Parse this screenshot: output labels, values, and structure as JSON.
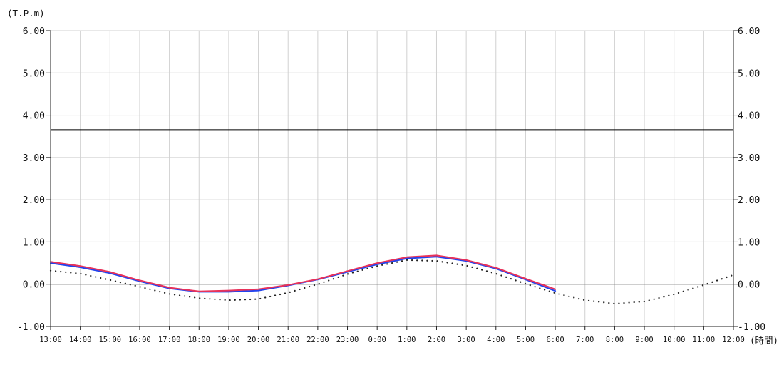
{
  "chart_data": {
    "type": "line",
    "y_unit_label": "(T.P.m)",
    "x_unit_label": "(時間)",
    "ylim": [
      -1.0,
      6.0
    ],
    "y_ticks": [
      "6.00",
      "5.00",
      "4.00",
      "3.00",
      "2.00",
      "1.00",
      "0.00",
      "-1.00"
    ],
    "categories": [
      "13:00",
      "14:00",
      "15:00",
      "16:00",
      "17:00",
      "18:00",
      "19:00",
      "20:00",
      "21:00",
      "22:00",
      "23:00",
      "0:00",
      "1:00",
      "2:00",
      "3:00",
      "4:00",
      "5:00",
      "6:00",
      "7:00",
      "8:00",
      "9:00",
      "10:00",
      "11:00",
      "12:00"
    ],
    "grid": true,
    "reference_line": {
      "value": 3.65,
      "color": "#000000"
    },
    "zero_line": {
      "value": 0.0,
      "color": "#555555"
    },
    "series": [
      {
        "style": "solid",
        "color": "#e8325a",
        "values": [
          0.53,
          0.43,
          0.29,
          0.09,
          -0.08,
          -0.17,
          -0.15,
          -0.12,
          -0.02,
          0.12,
          0.31,
          0.5,
          0.64,
          0.68,
          0.57,
          0.39,
          0.13,
          -0.12,
          null,
          null,
          null,
          null,
          null,
          null
        ]
      },
      {
        "style": "solid",
        "color": "#2244ee",
        "values": [
          0.5,
          0.4,
          0.26,
          0.07,
          -0.1,
          -0.18,
          -0.18,
          -0.15,
          -0.03,
          0.11,
          0.29,
          0.47,
          0.61,
          0.65,
          0.55,
          0.37,
          0.11,
          -0.16,
          null,
          null,
          null,
          null,
          null,
          null
        ]
      },
      {
        "style": "dotted",
        "color": "#222222",
        "values": [
          0.32,
          0.25,
          0.1,
          -0.06,
          -0.23,
          -0.33,
          -0.38,
          -0.35,
          -0.2,
          0.0,
          0.24,
          0.43,
          0.57,
          0.55,
          0.44,
          0.25,
          0.01,
          -0.21,
          -0.38,
          -0.46,
          -0.41,
          -0.24,
          -0.02,
          0.22
        ]
      }
    ]
  }
}
